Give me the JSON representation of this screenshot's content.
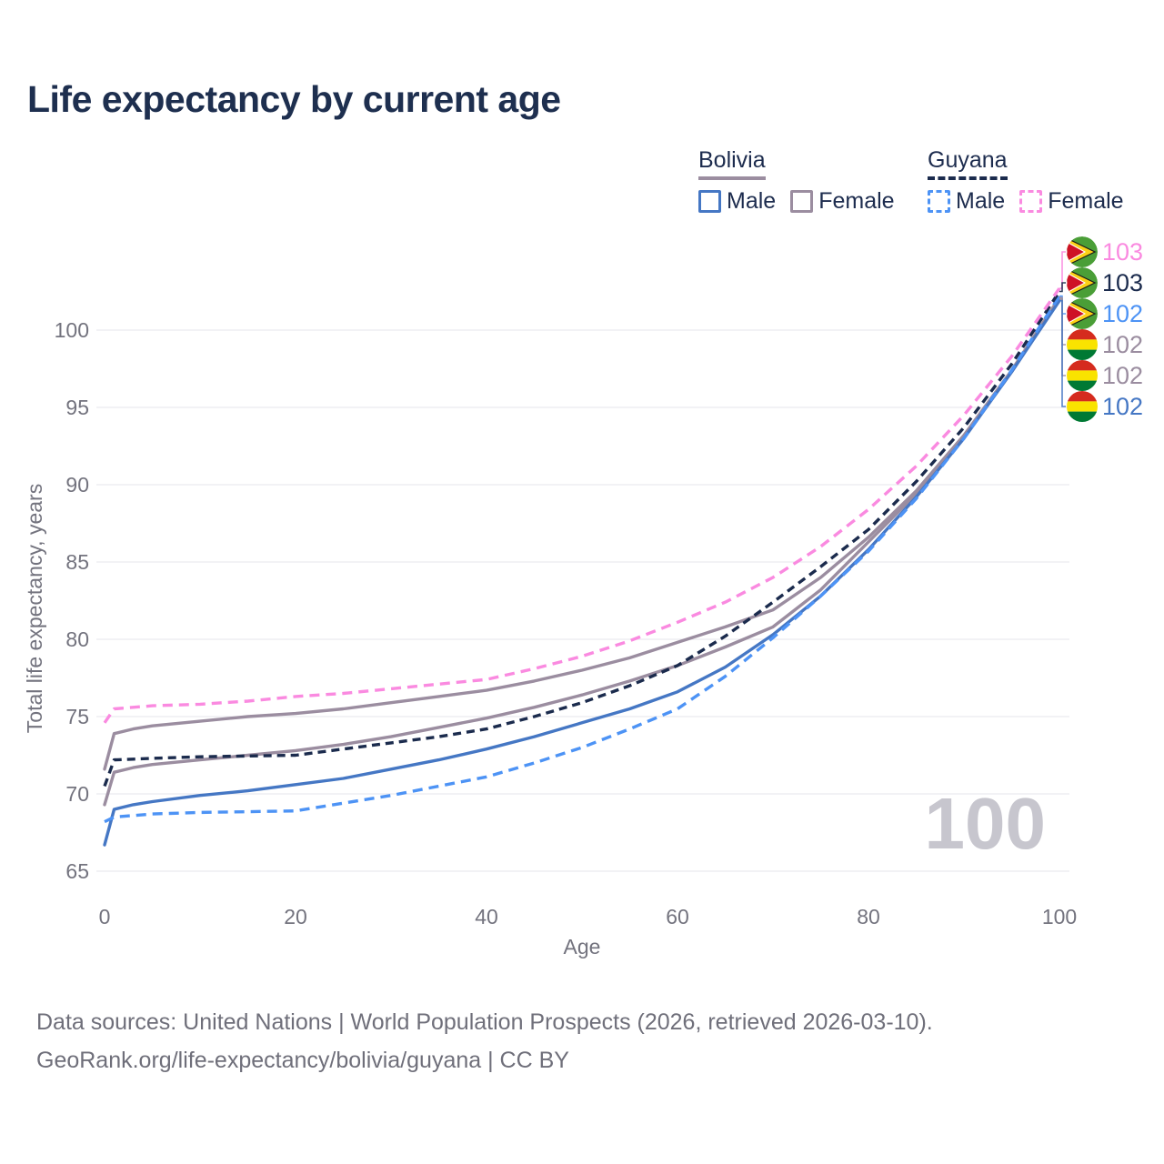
{
  "title": "Life expectancy by current age",
  "watermark_age": "100",
  "legend": {
    "groups": [
      {
        "name": "Bolivia",
        "line_style": "solid",
        "color": "#9b8da0",
        "items": [
          {
            "label": "Male",
            "color": "#4577c4",
            "dashed": false
          },
          {
            "label": "Female",
            "color": "#9b8da0",
            "dashed": false
          }
        ]
      },
      {
        "name": "Guyana",
        "line_style": "dashed",
        "color": "#1b2b4d",
        "items": [
          {
            "label": "Male",
            "color": "#4d93f5",
            "dashed": true
          },
          {
            "label": "Female",
            "color": "#fa8ae0",
            "dashed": true
          }
        ]
      }
    ]
  },
  "flags": {
    "bolivia": {
      "stripes": [
        "#d52b1e",
        "#f9e300",
        "#007934"
      ]
    },
    "guyana": {
      "field": "#4a9e37",
      "arrow": "#fcd116",
      "triangle": "#ce1126",
      "outline": "#1a1a1a"
    }
  },
  "footer": {
    "line1": "Data sources: United Nations | World Population Prospects (2026, retrieved 2026-03-10).",
    "line2": "GeoRank.org/life-expectancy/bolivia/guyana | CC BY"
  },
  "chart_data": {
    "type": "line",
    "title": "Life expectancy by current age",
    "xlabel": "Age",
    "ylabel": "Total life expectancy, years",
    "xlim": [
      0,
      100
    ],
    "ylim": [
      65,
      103.5
    ],
    "xticks": [
      0,
      20,
      40,
      60,
      80,
      100
    ],
    "yticks": [
      65,
      70,
      75,
      80,
      85,
      90,
      95,
      100
    ],
    "grid": true,
    "legend_position": "top-right",
    "series": [
      {
        "name": "Bolivia both sexes",
        "country": "Bolivia",
        "sex": "Both",
        "color": "#9b8da0",
        "dashed": false,
        "end_label": "102",
        "points": [
          [
            0,
            69.3
          ],
          [
            1,
            71.4
          ],
          [
            3,
            71.7
          ],
          [
            5,
            71.9
          ],
          [
            10,
            72.2
          ],
          [
            15,
            72.5
          ],
          [
            20,
            72.8
          ],
          [
            25,
            73.2
          ],
          [
            30,
            73.7
          ],
          [
            35,
            74.3
          ],
          [
            40,
            74.9
          ],
          [
            45,
            75.6
          ],
          [
            50,
            76.4
          ],
          [
            55,
            77.3
          ],
          [
            60,
            78.3
          ],
          [
            65,
            79.5
          ],
          [
            70,
            80.8
          ],
          [
            75,
            83.2
          ],
          [
            80,
            86.3
          ],
          [
            85,
            89.4
          ],
          [
            90,
            93.1
          ],
          [
            95,
            97.3
          ],
          [
            100,
            102.0
          ]
        ]
      },
      {
        "name": "Bolivia Female",
        "country": "Bolivia",
        "sex": "Female",
        "color": "#9b8da0",
        "dashed": false,
        "end_label": "102",
        "points": [
          [
            0,
            71.6
          ],
          [
            1,
            73.9
          ],
          [
            3,
            74.2
          ],
          [
            5,
            74.4
          ],
          [
            10,
            74.7
          ],
          [
            15,
            75.0
          ],
          [
            20,
            75.2
          ],
          [
            25,
            75.5
          ],
          [
            30,
            75.9
          ],
          [
            35,
            76.3
          ],
          [
            40,
            76.7
          ],
          [
            45,
            77.3
          ],
          [
            50,
            78.0
          ],
          [
            55,
            78.8
          ],
          [
            60,
            79.8
          ],
          [
            65,
            80.8
          ],
          [
            70,
            81.9
          ],
          [
            75,
            84.0
          ],
          [
            80,
            86.6
          ],
          [
            85,
            89.6
          ],
          [
            90,
            93.2
          ],
          [
            95,
            97.4
          ],
          [
            100,
            102.1
          ]
        ]
      },
      {
        "name": "Bolivia Male",
        "country": "Bolivia",
        "sex": "Male",
        "color": "#4577c4",
        "dashed": false,
        "end_label": "102",
        "points": [
          [
            0,
            66.7
          ],
          [
            1,
            69.0
          ],
          [
            3,
            69.3
          ],
          [
            5,
            69.5
          ],
          [
            10,
            69.9
          ],
          [
            15,
            70.2
          ],
          [
            20,
            70.6
          ],
          [
            25,
            71.0
          ],
          [
            30,
            71.6
          ],
          [
            35,
            72.2
          ],
          [
            40,
            72.9
          ],
          [
            45,
            73.7
          ],
          [
            50,
            74.6
          ],
          [
            55,
            75.5
          ],
          [
            60,
            76.6
          ],
          [
            65,
            78.2
          ],
          [
            70,
            80.3
          ],
          [
            75,
            82.8
          ],
          [
            80,
            85.8
          ],
          [
            85,
            89.2
          ],
          [
            90,
            93.0
          ],
          [
            95,
            97.3
          ],
          [
            100,
            101.9
          ]
        ]
      },
      {
        "name": "Guyana Male",
        "country": "Guyana",
        "sex": "Male",
        "color": "#4d93f5",
        "dashed": true,
        "end_label": "102",
        "points": [
          [
            0,
            68.2
          ],
          [
            1,
            68.5
          ],
          [
            3,
            68.6
          ],
          [
            5,
            68.7
          ],
          [
            10,
            68.8
          ],
          [
            15,
            68.85
          ],
          [
            20,
            68.9
          ],
          [
            25,
            69.4
          ],
          [
            30,
            69.9
          ],
          [
            35,
            70.5
          ],
          [
            40,
            71.1
          ],
          [
            45,
            72.0
          ],
          [
            50,
            73.0
          ],
          [
            55,
            74.2
          ],
          [
            60,
            75.5
          ],
          [
            65,
            77.6
          ],
          [
            70,
            80.1
          ],
          [
            75,
            82.8
          ],
          [
            80,
            85.7
          ],
          [
            85,
            89.1
          ],
          [
            90,
            93.0
          ],
          [
            95,
            97.4
          ],
          [
            100,
            102.2
          ]
        ]
      },
      {
        "name": "Guyana both sexes",
        "country": "Guyana",
        "sex": "Both",
        "color": "#1b2b4d",
        "dashed": true,
        "end_label": "103",
        "points": [
          [
            0,
            70.5
          ],
          [
            1,
            72.2
          ],
          [
            3,
            72.25
          ],
          [
            5,
            72.3
          ],
          [
            10,
            72.4
          ],
          [
            15,
            72.45
          ],
          [
            20,
            72.5
          ],
          [
            25,
            72.9
          ],
          [
            30,
            73.3
          ],
          [
            35,
            73.7
          ],
          [
            40,
            74.2
          ],
          [
            45,
            75.0
          ],
          [
            50,
            75.9
          ],
          [
            55,
            77.0
          ],
          [
            60,
            78.3
          ],
          [
            65,
            80.2
          ],
          [
            70,
            82.4
          ],
          [
            75,
            84.7
          ],
          [
            80,
            87.1
          ],
          [
            85,
            90.2
          ],
          [
            90,
            93.7
          ],
          [
            95,
            97.8
          ],
          [
            100,
            102.5
          ]
        ]
      },
      {
        "name": "Guyana Female",
        "country": "Guyana",
        "sex": "Female",
        "color": "#fa8ae0",
        "dashed": true,
        "end_label": "103",
        "points": [
          [
            0,
            74.6
          ],
          [
            1,
            75.5
          ],
          [
            3,
            75.6
          ],
          [
            5,
            75.7
          ],
          [
            10,
            75.8
          ],
          [
            15,
            76.0
          ],
          [
            20,
            76.3
          ],
          [
            25,
            76.5
          ],
          [
            30,
            76.8
          ],
          [
            35,
            77.1
          ],
          [
            40,
            77.4
          ],
          [
            45,
            78.1
          ],
          [
            50,
            78.9
          ],
          [
            55,
            79.9
          ],
          [
            60,
            81.1
          ],
          [
            65,
            82.4
          ],
          [
            70,
            84.0
          ],
          [
            75,
            86.0
          ],
          [
            80,
            88.4
          ],
          [
            85,
            91.2
          ],
          [
            90,
            94.5
          ],
          [
            95,
            98.3
          ],
          [
            100,
            102.7
          ]
        ]
      }
    ]
  }
}
